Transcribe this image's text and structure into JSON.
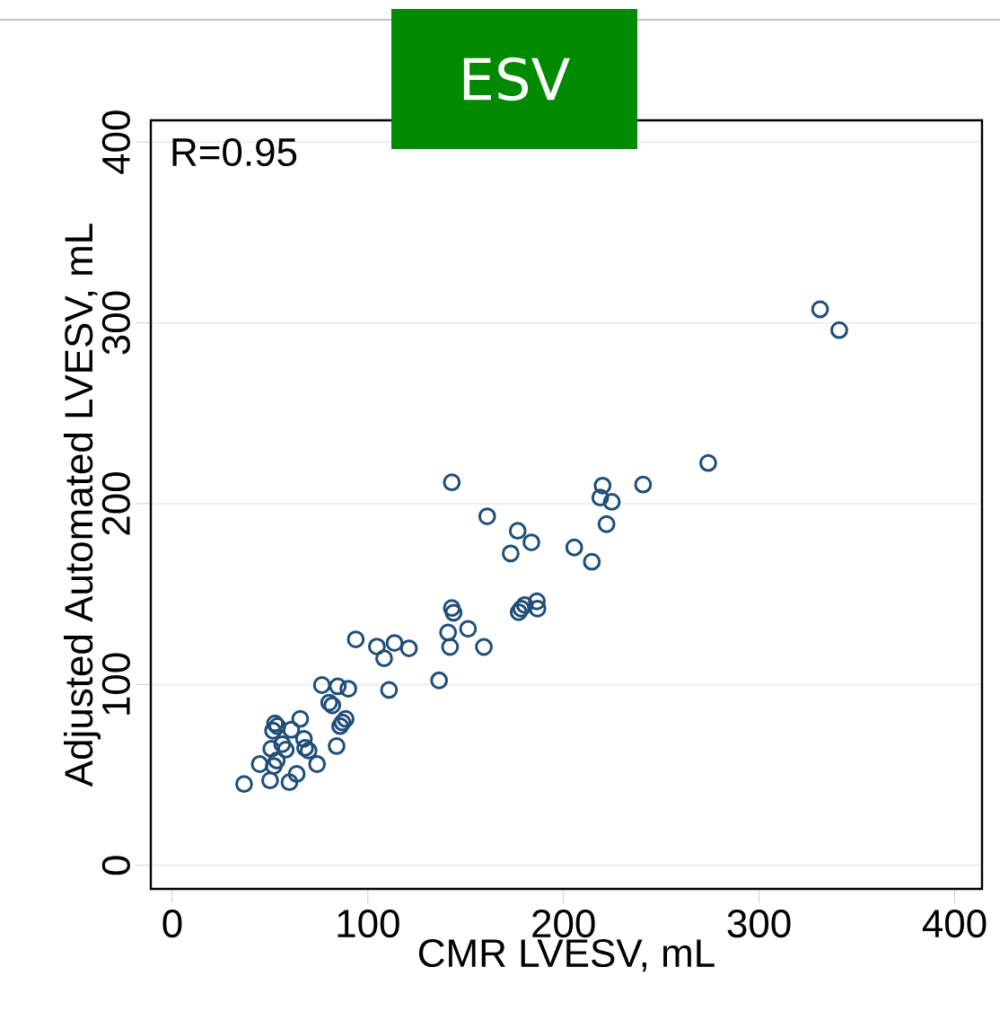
{
  "chart_data": {
    "type": "scatter",
    "title": "ESV",
    "xlabel": "CMR LVESV, mL",
    "ylabel": "Adjusted Automated LVESV, mL",
    "annotations": [
      "R=0.95"
    ],
    "xlim": [
      -11,
      414
    ],
    "ylim": [
      -13,
      412
    ],
    "xticks": [
      0,
      100,
      200,
      300,
      400
    ],
    "yticks": [
      0,
      100,
      200,
      300,
      400
    ],
    "grid": "y",
    "marker": "circle",
    "series": [
      {
        "color": "#1f4e79",
        "x": [
          36.7,
          44.7,
          50,
          51.5,
          52.5,
          53.7,
          50.6,
          51.9,
          53.4,
          56.2,
          58,
          60.8,
          59.9,
          63.6,
          65.4,
          67.3,
          67.9,
          69.7,
          74,
          76.5,
          80.2,
          81.8,
          84,
          84.6,
          85.8,
          87,
          88.6,
          90,
          93.8,
          104.6,
          108.3,
          110.8,
          113.6,
          121,
          142.9,
          161,
          176.6,
          183.6,
          173,
          205.5,
          214.5,
          220,
          218.8,
          224.7,
          222,
          142.9,
          143.8,
          141,
          151.2,
          142,
          159.3,
          177.1,
          178.4,
          180.2,
          186.4,
          186.7,
          136.4,
          331.2,
          341,
          274,
          240.7
        ],
        "values": [
          45,
          56,
          47,
          74.5,
          78.5,
          77,
          64.5,
          55,
          58,
          67,
          64,
          75,
          46,
          50.6,
          81,
          70,
          65,
          63.5,
          56,
          99.7,
          90,
          88.5,
          66,
          99,
          77,
          79,
          81,
          97.7,
          125,
          121,
          114.5,
          97,
          123,
          120,
          211.8,
          193,
          185,
          178.6,
          172.5,
          175.8,
          167.9,
          210,
          203.4,
          201,
          188.7,
          142.3,
          139.7,
          128.8,
          130.8,
          120.8,
          120.8,
          140,
          142,
          144,
          146,
          142,
          102.3,
          307.5,
          296,
          222.5,
          210.6
        ]
      }
    ]
  }
}
